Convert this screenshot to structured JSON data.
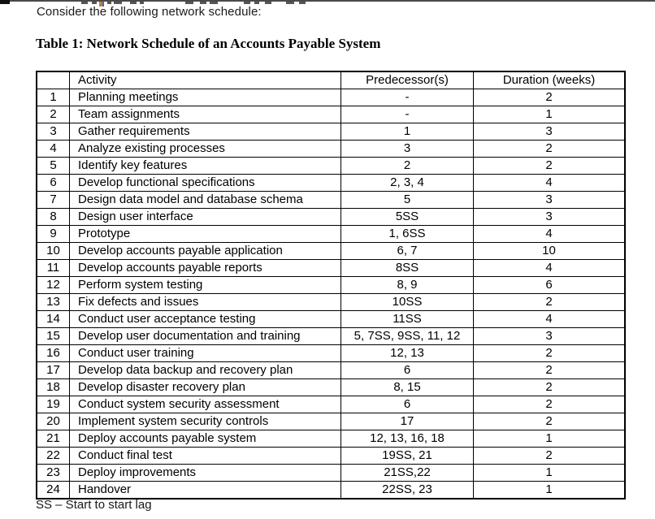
{
  "page": {
    "intro": "Consider the following network schedule:",
    "table_title": "Table 1: Network Schedule of an Accounts Payable System",
    "footnote": "SS – Start to start lag"
  },
  "table": {
    "headers": {
      "index": "",
      "activity": "Activity",
      "predecessors": "Predecessor(s)",
      "duration": "Duration (weeks)"
    },
    "rows": [
      {
        "num": "1",
        "activity": "Planning meetings",
        "pred": "-",
        "dur": "2"
      },
      {
        "num": "2",
        "activity": "Team assignments",
        "pred": "-",
        "dur": "1"
      },
      {
        "num": "3",
        "activity": "Gather requirements",
        "pred": "1",
        "dur": "3"
      },
      {
        "num": "4",
        "activity": "Analyze existing processes",
        "pred": "3",
        "dur": "2"
      },
      {
        "num": "5",
        "activity": "Identify key features",
        "pred": "2",
        "dur": "2"
      },
      {
        "num": "6",
        "activity": "Develop functional specifications",
        "pred": "2, 3, 4",
        "dur": "4"
      },
      {
        "num": "7",
        "activity": "Design data model and database schema",
        "pred": "5",
        "dur": "3"
      },
      {
        "num": "8",
        "activity": "Design user interface",
        "pred": "5SS",
        "dur": "3"
      },
      {
        "num": "9",
        "activity": "Prototype",
        "pred": "1, 6SS",
        "dur": "4"
      },
      {
        "num": "10",
        "activity": "Develop accounts payable application",
        "pred": "6, 7",
        "dur": "10"
      },
      {
        "num": "11",
        "activity": "Develop accounts payable reports",
        "pred": "8SS",
        "dur": "4"
      },
      {
        "num": "12",
        "activity": "Perform system testing",
        "pred": "8, 9",
        "dur": "6"
      },
      {
        "num": "13",
        "activity": "Fix defects and issues",
        "pred": "10SS",
        "dur": "2"
      },
      {
        "num": "14",
        "activity": "Conduct user acceptance testing",
        "pred": "11SS",
        "dur": "4"
      },
      {
        "num": "15",
        "activity": "Develop user documentation and training",
        "pred": "5, 7SS, 9SS, 11, 12",
        "dur": "3"
      },
      {
        "num": "16",
        "activity": "Conduct user training",
        "pred": "12, 13",
        "dur": "2"
      },
      {
        "num": "17",
        "activity": "Develop data backup and recovery plan",
        "pred": "6",
        "dur": "2"
      },
      {
        "num": "18",
        "activity": "Develop disaster recovery plan",
        "pred": "8, 15",
        "dur": "2"
      },
      {
        "num": "19",
        "activity": "Conduct system security assessment",
        "pred": "6",
        "dur": "2"
      },
      {
        "num": "20",
        "activity": "Implement system security controls",
        "pred": "17",
        "dur": "2"
      },
      {
        "num": "21",
        "activity": "Deploy accounts payable system",
        "pred": "12, 13, 16, 18",
        "dur": "1"
      },
      {
        "num": "22",
        "activity": "Conduct final test",
        "pred": "19SS, 21",
        "dur": "2"
      },
      {
        "num": "23",
        "activity": "Deploy improvements",
        "pred": "21SS,22",
        "dur": "1"
      },
      {
        "num": "24",
        "activity": "Handover",
        "pred": "22SS, 23",
        "dur": "1"
      }
    ]
  }
}
